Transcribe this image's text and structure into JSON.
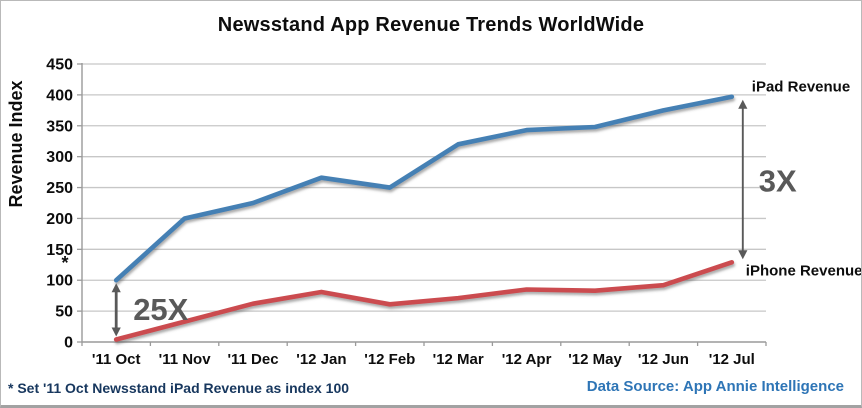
{
  "page": {
    "title": "Newsstand App Revenue Trends WorldWide",
    "footnote": "* Set '11 Oct Newsstand iPad Revenue as index 100",
    "data_source": "Data Source: App Annie Intelligence"
  },
  "chart_data": {
    "type": "line",
    "title": "Newsstand App Revenue Trends WorldWide",
    "xlabel": "",
    "ylabel": "Revenue Index",
    "categories": [
      "'11 Oct",
      "'11 Nov",
      "'11 Dec",
      "'12 Jan",
      "'12 Feb",
      "'12 Mar",
      "'12 Apr",
      "'12 May",
      "'12 Jun",
      "'12 Jul"
    ],
    "series": [
      {
        "name": "iPad Revenue",
        "color": "#4580B4",
        "values": [
          100,
          200,
          225,
          266,
          250,
          320,
          343,
          348,
          375,
          397
        ]
      },
      {
        "name": "iPhone Revenue",
        "color": "#CB4B50",
        "values": [
          4,
          33,
          62,
          81,
          61,
          71,
          85,
          83,
          92,
          129
        ]
      }
    ],
    "ylim": [
      0,
      450
    ],
    "y_ticks": [
      0,
      50,
      100,
      150,
      200,
      250,
      300,
      350,
      400,
      450
    ],
    "grid": true,
    "legend_position": "series-end-labels",
    "annotations": [
      {
        "type": "double-arrow",
        "label": "25X",
        "category_index": 0,
        "from_value": 100,
        "to_value": 4
      },
      {
        "type": "double-arrow",
        "label": "3X",
        "category_index": 9,
        "from_value": 397,
        "to_value": 129
      },
      {
        "type": "axis-asterisk",
        "label": "*",
        "near_tick": 100
      }
    ],
    "colors": {
      "grid": "#c7c7c7",
      "axis": "#9a9a9a",
      "tick_label": "#0d0d0d",
      "annotation": "#595959",
      "series_label": "#0d0d0d"
    }
  }
}
